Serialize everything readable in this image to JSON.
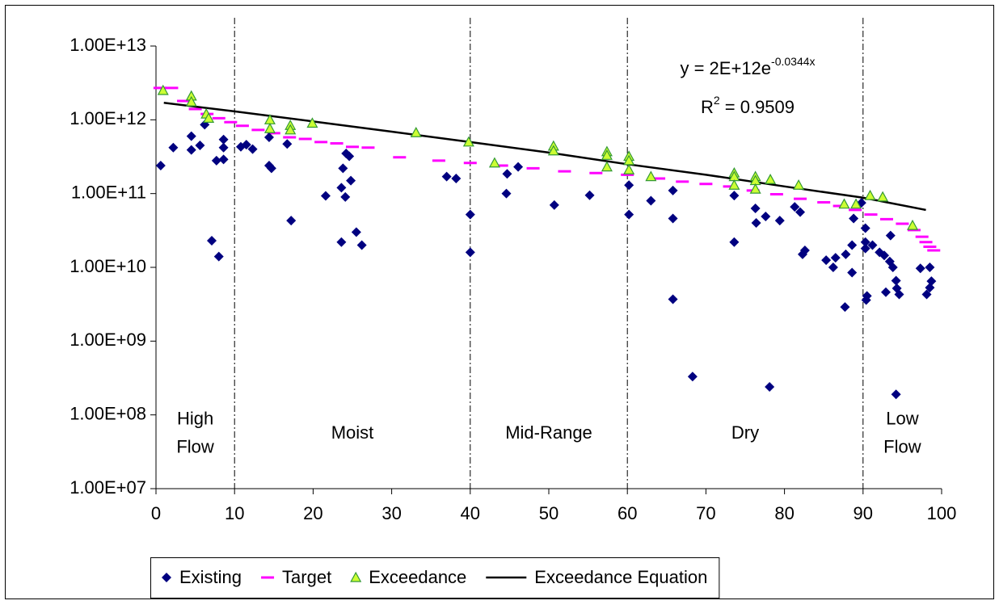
{
  "chart_data": {
    "type": "scatter",
    "log_y": true,
    "grid": false,
    "legend_position": "bottom",
    "xlim": [
      0,
      100
    ],
    "xticks": [
      0,
      10,
      20,
      30,
      40,
      50,
      60,
      70,
      80,
      90,
      100
    ],
    "ylim": [
      10000000.0,
      10000000000000.0
    ],
    "yticks": [
      {
        "value": 10000000.0,
        "label": "1.00E+07"
      },
      {
        "value": 100000000.0,
        "label": "1.00E+08"
      },
      {
        "value": 1000000000.0,
        "label": "1.00E+09"
      },
      {
        "value": 10000000000.0,
        "label": "1.00E+10"
      },
      {
        "value": 100000000000.0,
        "label": "1.00E+11"
      },
      {
        "value": 1000000000000.0,
        "label": "1.00E+12"
      },
      {
        "value": 10000000000000.0,
        "label": "1.00E+13"
      }
    ],
    "zone_boundaries": [
      10,
      40,
      60,
      90
    ],
    "zone_labels": [
      [
        "High",
        "Flow"
      ],
      [
        "Moist"
      ],
      [
        "Mid-Range"
      ],
      [
        "Dry"
      ],
      [
        "Low",
        "Flow"
      ]
    ],
    "equation": {
      "base": "y = 2E+12e",
      "exponent": "-0.0344x"
    },
    "r_squared": {
      "base": "R",
      "exponent": "2",
      "rest": " = 0.9509"
    },
    "series": [
      {
        "name": "Existing",
        "kind": "diamond",
        "color": "#000080",
        "x": [
          0.6,
          2.2,
          4.5,
          4.5,
          5.6,
          6.2,
          7.1,
          7.7,
          8.0,
          8.6,
          8.6,
          8.6,
          10.8,
          11.5,
          12.3,
          14.4,
          14.4,
          14.7,
          16.7,
          17.2,
          21.6,
          23.6,
          23.8,
          23.6,
          24.1,
          24.2,
          24.6,
          24.8,
          25.5,
          26.2,
          37.0,
          38.2,
          40.0,
          40.0,
          44.7,
          44.6,
          46.1,
          50.7,
          55.2,
          60.2,
          60.2,
          63.0,
          65.8,
          65.8,
          65.8,
          68.3,
          73.6,
          73.6,
          76.3,
          76.4,
          77.6,
          78.1,
          79.4,
          81.3,
          82.0,
          82.6,
          82.3,
          85.3,
          86.2,
          86.5,
          87.8,
          87.7,
          88.6,
          88.6,
          88.8,
          89.8,
          90.3,
          90.3,
          90.3,
          90.4,
          90.5,
          91.2,
          92.1,
          92.7,
          92.9,
          93.4,
          93.5,
          93.8,
          94.2,
          94.3,
          94.6,
          94.2,
          97.3,
          98.1,
          98.5,
          98.5,
          98.7
        ],
        "values": [
          240000000000.0,
          420000000000.0,
          600000000000.0,
          390000000000.0,
          450000000000.0,
          860000000000.0,
          23000000000.0,
          280000000000.0,
          14000000000.0,
          540000000000.0,
          420000000000.0,
          290000000000.0,
          430000000000.0,
          460000000000.0,
          400000000000.0,
          580000000000.0,
          240000000000.0,
          220000000000.0,
          470000000000.0,
          43000000000.0,
          93000000000.0,
          22000000000.0,
          220000000000.0,
          120000000000.0,
          90000000000.0,
          350000000000.0,
          320000000000.0,
          150000000000.0,
          30000000000.0,
          20000000000.0,
          170000000000.0,
          160000000000.0,
          52000000000.0,
          16000000000.0,
          185000000000.0,
          100000000000.0,
          230000000000.0,
          70000000000.0,
          95000000000.0,
          130000000000.0,
          52000000000.0,
          80000000000.0,
          110000000000.0,
          46000000000.0,
          3700000000.0,
          330000000.0,
          94000000000.0,
          22000000000.0,
          63000000000.0,
          40000000000.0,
          49000000000.0,
          240000000.0,
          43000000000.0,
          66000000000.0,
          56000000000.0,
          17000000000.0,
          15000000000.0,
          12500000000.0,
          10000000000.0,
          13500000000.0,
          15000000000.0,
          2900000000.0,
          8500000000.0,
          20000000000.0,
          46000000000.0,
          75000000000.0,
          34000000000.0,
          22000000000.0,
          18000000000.0,
          3600000000.0,
          4100000000.0,
          20000000000.0,
          16000000000.0,
          14500000000.0,
          4600000000.0,
          12000000000.0,
          27000000000.0,
          10000000000.0,
          6600000000.0,
          5200000000.0,
          4300000000.0,
          190000000.0,
          9700000000.0,
          4300000000.0,
          10000000000.0,
          5300000000.0,
          6500000000.0
        ]
      },
      {
        "name": "Target",
        "kind": "dash",
        "color": "#ff00ff",
        "x": [
          0.5,
          2,
          3.5,
          5,
          6.5,
          8,
          9.5,
          11,
          13,
          15,
          17,
          19,
          21,
          23,
          25,
          27,
          31,
          36,
          40,
          44,
          48,
          52,
          56,
          60,
          64,
          67,
          70,
          73,
          76,
          79,
          82,
          85,
          87,
          89,
          91,
          93,
          95,
          96.5,
          97.5,
          98,
          98.5,
          99
        ],
        "values": [
          2700000000000.0,
          2700000000000.0,
          1800000000000.0,
          1400000000000.0,
          1200000000000.0,
          1050000000000.0,
          930000000000.0,
          830000000000.0,
          730000000000.0,
          660000000000.0,
          580000000000.0,
          550000000000.0,
          500000000000.0,
          480000000000.0,
          430000000000.0,
          420000000000.0,
          310000000000.0,
          280000000000.0,
          260000000000.0,
          240000000000.0,
          220000000000.0,
          200000000000.0,
          190000000000.0,
          180000000000.0,
          160000000000.0,
          145000000000.0,
          135000000000.0,
          125000000000.0,
          110000000000.0,
          98000000000.0,
          85000000000.0,
          76000000000.0,
          68000000000.0,
          60000000000.0,
          52000000000.0,
          45000000000.0,
          39000000000.0,
          32000000000.0,
          26000000000.0,
          22000000000.0,
          19000000000.0,
          17000000000.0
        ]
      },
      {
        "name": "Exceedance",
        "kind": "triangle",
        "color": "#ccff33",
        "x": [
          0.9,
          4.5,
          4.5,
          6.4,
          6.7,
          14.5,
          14.5,
          17.1,
          17.1,
          19.9,
          33.1,
          39.8,
          43.1,
          50.6,
          50.6,
          57.4,
          57.4,
          57.4,
          60.2,
          60.2,
          60.2,
          63.0,
          73.6,
          73.6,
          73.6,
          76.3,
          76.3,
          76.3,
          78.2,
          81.8,
          87.6,
          89.1,
          90.9,
          92.5,
          96.3
        ],
        "values": [
          2500000000000.0,
          2100000000000.0,
          1750000000000.0,
          1200000000000.0,
          1050000000000.0,
          1000000000000.0,
          760000000000.0,
          840000000000.0,
          730000000000.0,
          900000000000.0,
          670000000000.0,
          500000000000.0,
          260000000000.0,
          440000000000.0,
          380000000000.0,
          370000000000.0,
          330000000000.0,
          230000000000.0,
          320000000000.0,
          280000000000.0,
          210000000000.0,
          170000000000.0,
          190000000000.0,
          170000000000.0,
          130000000000.0,
          170000000000.0,
          150000000000.0,
          115000000000.0,
          155000000000.0,
          130000000000.0,
          72000000000.0,
          72000000000.0,
          94000000000.0,
          90000000000.0,
          37000000000.0
        ]
      },
      {
        "name": "Exceedance Equation",
        "kind": "line",
        "color": "#000000",
        "x": [
          1,
          10,
          20,
          30,
          40,
          50,
          60,
          70,
          80,
          90,
          98
        ],
        "values": [
          1700000000000.0,
          1300000000000.0,
          950000000000.0,
          690000000000.0,
          500000000000.0,
          360000000000.0,
          250000000000.0,
          180000000000.0,
          125000000000.0,
          88000000000.0,
          60000000000.0
        ]
      }
    ]
  }
}
